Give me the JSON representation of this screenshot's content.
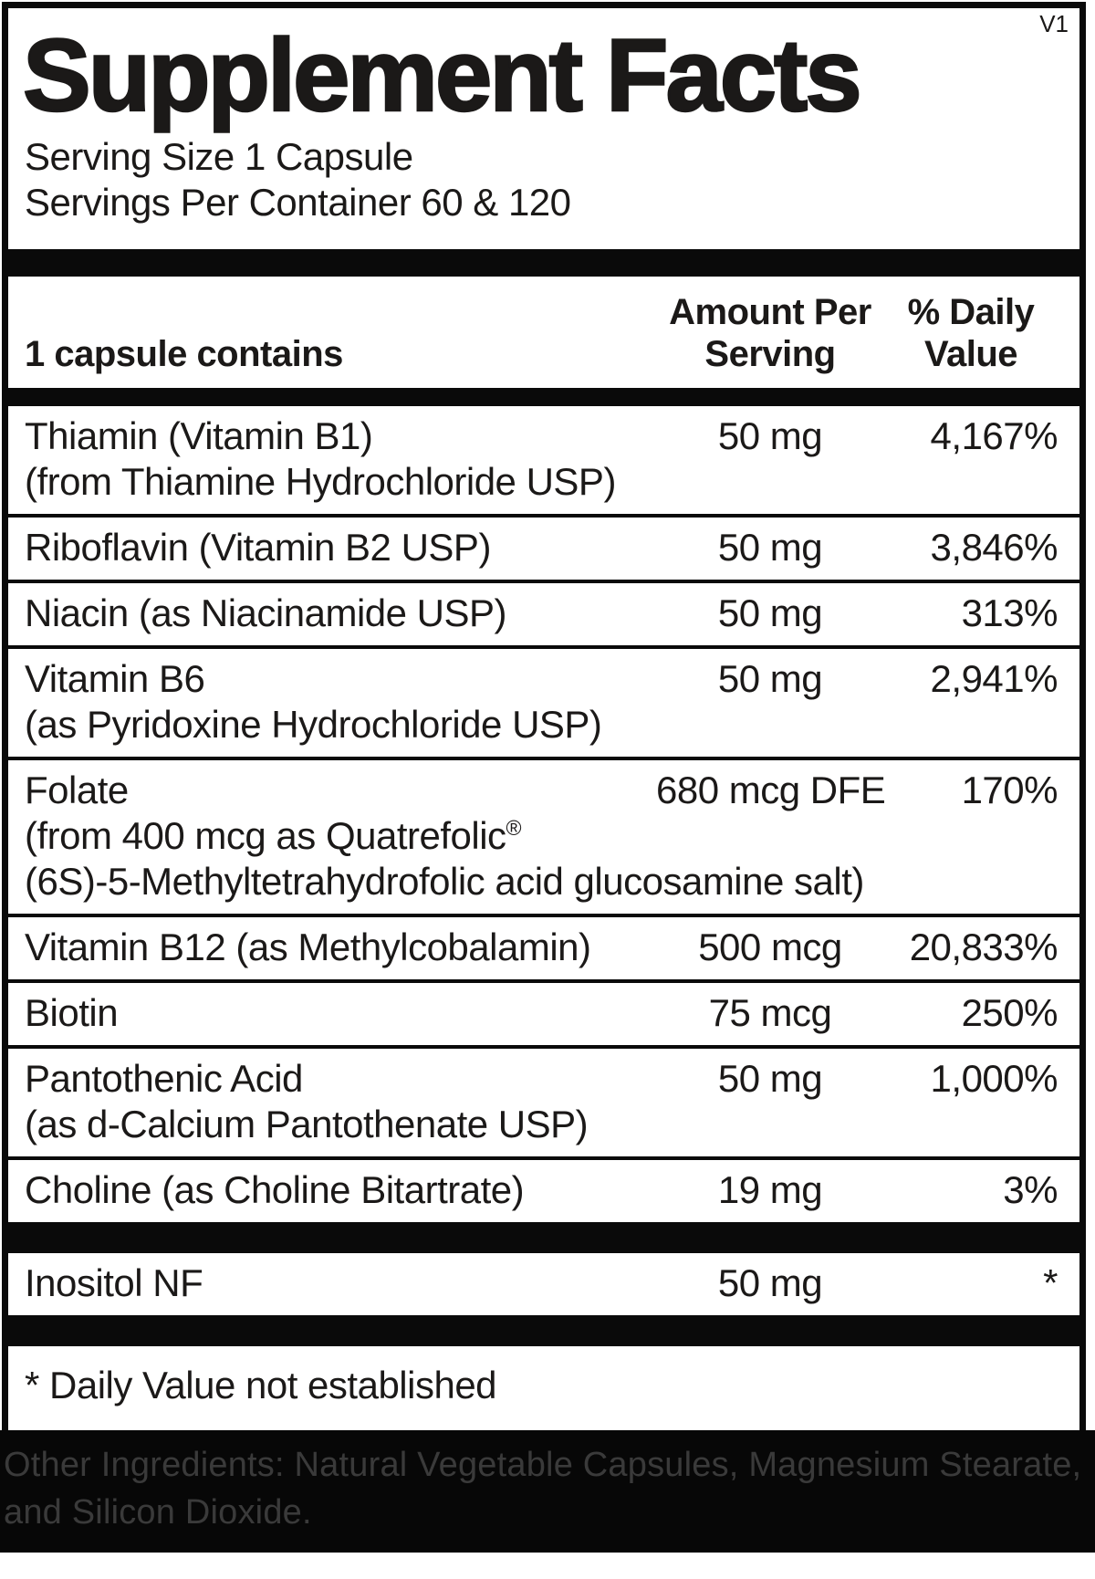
{
  "version_tag": "V1",
  "title": "Supplement Facts",
  "serving": {
    "size_line": "Serving Size 1 Capsule",
    "per_container_line": "Servings Per Container 60 & 120"
  },
  "table": {
    "header": {
      "name_col": "1 capsule contains",
      "amount_col_line1": "Amount Per",
      "amount_col_line2": "Serving",
      "dv_col_line1": "% Daily",
      "dv_col_line2": "Value"
    },
    "rows": [
      {
        "name_lines": [
          "Thiamin (Vitamin B1)",
          "(from Thiamine Hydrochloride USP)"
        ],
        "amount": "50 mg",
        "daily_value": "4,167%"
      },
      {
        "name_lines": [
          "Riboflavin (Vitamin B2 USP)"
        ],
        "amount": "50 mg",
        "daily_value": "3,846%"
      },
      {
        "name_lines": [
          "Niacin (as Niacinamide USP)"
        ],
        "amount": "50 mg",
        "daily_value": "313%"
      },
      {
        "name_lines": [
          "Vitamin B6",
          "(as Pyridoxine Hydrochloride USP)"
        ],
        "amount": "50 mg",
        "daily_value": "2,941%"
      },
      {
        "name_lines": [
          "Folate",
          {
            "text": "(from 400 mcg as Quatrefolic",
            "sup": "®"
          },
          "(6S)-5-Methyltetrahydrofolic acid glucosamine salt)"
        ],
        "amount": "680 mcg DFE",
        "daily_value": "170%"
      },
      {
        "name_lines": [
          "Vitamin B12 (as Methylcobalamin)"
        ],
        "amount": "500 mcg",
        "daily_value": "20,833%"
      },
      {
        "name_lines": [
          "Biotin"
        ],
        "amount": "75 mcg",
        "daily_value": "250%"
      },
      {
        "name_lines": [
          "Pantothenic Acid",
          "(as d-Calcium Pantothenate USP)"
        ],
        "amount": "50 mg",
        "daily_value": "1,000%"
      },
      {
        "name_lines": [
          "Choline (as Choline Bitartrate)"
        ],
        "amount": "19 mg",
        "daily_value": "3%"
      }
    ],
    "no_dv_rows": [
      {
        "name_lines": [
          "Inositol NF"
        ],
        "amount": "50 mg",
        "daily_value": "*"
      }
    ]
  },
  "footnote": "* Daily Value not established",
  "other_ingredients": {
    "text": "Other Ingredients: Natural Vegetable Capsules, Magnesium Stearate, and Silicon Dioxide."
  },
  "colors": {
    "ink": "#1b1918",
    "bar_black": "#0a0a0a",
    "band_background": "#070707",
    "band_text": "#3a3a3a"
  }
}
